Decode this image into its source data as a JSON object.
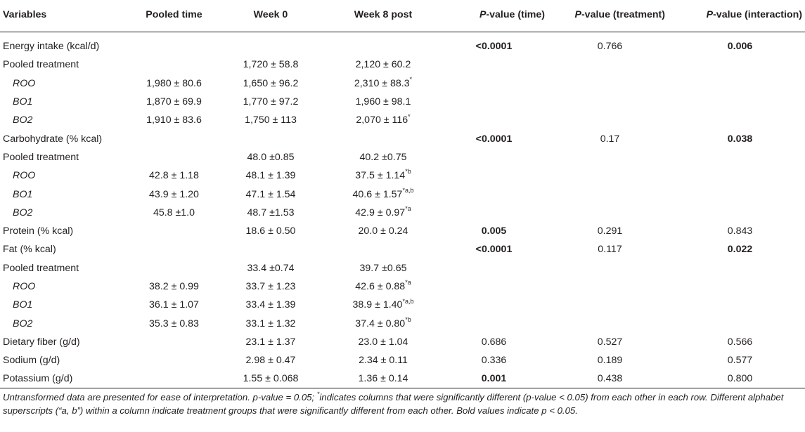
{
  "header": {
    "variables": "Variables",
    "pooled_time": "Pooled time",
    "week0": "Week 0",
    "week8": "Week 8 post",
    "p_time_prefix": "P",
    "p_time_suffix": "-value (time)",
    "p_treat_prefix": "P",
    "p_treat_suffix": "-value (treatment)",
    "p_inter_prefix": "P",
    "p_inter_suffix": "-value (interaction)"
  },
  "rows": [
    {
      "label": "Energy intake (kcal/d)",
      "sub": false,
      "pooled": "",
      "w0": "",
      "w8": "",
      "w8_sup": "",
      "pt": "<0.0001",
      "pt_bold": true,
      "ptr": "0.766",
      "ptr_bold": false,
      "pi": "0.006",
      "pi_bold": true
    },
    {
      "label": "Pooled treatment",
      "sub": false,
      "pooled": "",
      "w0": "1,720 ± 58.8",
      "w8": "2,120 ± 60.2",
      "w8_sup": "",
      "pt": "",
      "pt_bold": false,
      "ptr": "",
      "ptr_bold": false,
      "pi": "",
      "pi_bold": false
    },
    {
      "label": "ROO",
      "sub": true,
      "pooled": "1,980 ± 80.6",
      "w0": "1,650 ± 96.2",
      "w8": "2,310 ± 88.3",
      "w8_sup": "*",
      "pt": "",
      "pt_bold": false,
      "ptr": "",
      "ptr_bold": false,
      "pi": "",
      "pi_bold": false
    },
    {
      "label": "BO1",
      "sub": true,
      "pooled": "1,870 ± 69.9",
      "w0": "1,770 ± 97.2",
      "w8": "1,960 ± 98.1",
      "w8_sup": "",
      "pt": "",
      "pt_bold": false,
      "ptr": "",
      "ptr_bold": false,
      "pi": "",
      "pi_bold": false
    },
    {
      "label": "BO2",
      "sub": true,
      "pooled": "1,910 ± 83.6",
      "w0": "1,750 ± 113",
      "w8": "2,070 ± 116",
      "w8_sup": "*",
      "pt": "",
      "pt_bold": false,
      "ptr": "",
      "ptr_bold": false,
      "pi": "",
      "pi_bold": false
    },
    {
      "label": "Carbohydrate (% kcal)",
      "sub": false,
      "pooled": "",
      "w0": "",
      "w8": "",
      "w8_sup": "",
      "pt": "<0.0001",
      "pt_bold": true,
      "ptr": "0.17",
      "ptr_bold": false,
      "pi": "0.038",
      "pi_bold": true
    },
    {
      "label": "Pooled treatment",
      "sub": false,
      "pooled": "",
      "w0": "48.0 ±0.85",
      "w8": "40.2 ±0.75",
      "w8_sup": "",
      "pt": "",
      "pt_bold": false,
      "ptr": "",
      "ptr_bold": false,
      "pi": "",
      "pi_bold": false
    },
    {
      "label": "ROO",
      "sub": true,
      "pooled": "42.8 ± 1.18",
      "w0": "48.1 ± 1.39",
      "w8": "37.5 ± 1.14",
      "w8_sup": "*b",
      "pt": "",
      "pt_bold": false,
      "ptr": "",
      "ptr_bold": false,
      "pi": "",
      "pi_bold": false
    },
    {
      "label": "BO1",
      "sub": true,
      "pooled": "43.9 ± 1.20",
      "w0": "47.1 ± 1.54",
      "w8": "40.6 ± 1.57",
      "w8_sup": "*a,b",
      "pt": "",
      "pt_bold": false,
      "ptr": "",
      "ptr_bold": false,
      "pi": "",
      "pi_bold": false
    },
    {
      "label": "BO2",
      "sub": true,
      "pooled": "45.8 ±1.0",
      "w0": "48.7 ±1.53",
      "w8": "42.9 ± 0.97",
      "w8_sup": "*a",
      "pt": "",
      "pt_bold": false,
      "ptr": "",
      "ptr_bold": false,
      "pi": "",
      "pi_bold": false
    },
    {
      "label": "Protein (% kcal)",
      "sub": false,
      "pooled": "",
      "w0": "18.6 ± 0.50",
      "w8": "20.0 ± 0.24",
      "w8_sup": "",
      "pt": "0.005",
      "pt_bold": true,
      "ptr": "0.291",
      "ptr_bold": false,
      "pi": "0.843",
      "pi_bold": false
    },
    {
      "label": "Fat (% kcal)",
      "sub": false,
      "pooled": "",
      "w0": "",
      "w8": "",
      "w8_sup": "",
      "pt": "<0.0001",
      "pt_bold": true,
      "ptr": "0.117",
      "ptr_bold": false,
      "pi": "0.022",
      "pi_bold": true
    },
    {
      "label": "Pooled treatment",
      "sub": false,
      "pooled": "",
      "w0": "33.4 ±0.74",
      "w8": "39.7 ±0.65",
      "w8_sup": "",
      "pt": "",
      "pt_bold": false,
      "ptr": "",
      "ptr_bold": false,
      "pi": "",
      "pi_bold": false
    },
    {
      "label": "ROO",
      "sub": true,
      "pooled": "38.2 ± 0.99",
      "w0": "33.7 ± 1.23",
      "w8": "42.6 ± 0.88",
      "w8_sup": "*a",
      "pt": "",
      "pt_bold": false,
      "ptr": "",
      "ptr_bold": false,
      "pi": "",
      "pi_bold": false
    },
    {
      "label": "BO1",
      "sub": true,
      "pooled": "36.1 ± 1.07",
      "w0": "33.4 ± 1.39",
      "w8": "38.9 ± 1.40",
      "w8_sup": "*a,b",
      "pt": "",
      "pt_bold": false,
      "ptr": "",
      "ptr_bold": false,
      "pi": "",
      "pi_bold": false
    },
    {
      "label": "BO2",
      "sub": true,
      "pooled": "35.3 ± 0.83",
      "w0": "33.1 ± 1.32",
      "w8": "37.4 ± 0.80",
      "w8_sup": "*b",
      "pt": "",
      "pt_bold": false,
      "ptr": "",
      "ptr_bold": false,
      "pi": "",
      "pi_bold": false
    },
    {
      "label": "Dietary fiber (g/d)",
      "sub": false,
      "pooled": "",
      "w0": "23.1 ± 1.37",
      "w8": "23.0 ± 1.04",
      "w8_sup": "",
      "pt": "0.686",
      "pt_bold": false,
      "ptr": "0.527",
      "ptr_bold": false,
      "pi": "0.566",
      "pi_bold": false
    },
    {
      "label": "Sodium (g/d)",
      "sub": false,
      "pooled": "",
      "w0": "2.98 ± 0.47",
      "w8": "2.34 ± 0.11",
      "w8_sup": "",
      "pt": "0.336",
      "pt_bold": false,
      "ptr": "0.189",
      "ptr_bold": false,
      "pi": "0.577",
      "pi_bold": false
    },
    {
      "label": "Potassium (g/d)",
      "sub": false,
      "pooled": "",
      "w0": "1.55 ± 0.068",
      "w8": "1.36 ± 0.14",
      "w8_sup": "",
      "pt": "0.001",
      "pt_bold": true,
      "ptr": "0.438",
      "ptr_bold": false,
      "pi": "0.800",
      "pi_bold": false
    }
  ],
  "notes": {
    "part1": "Untransformed data are presented for ease of interpretation. p-value = 0.05; ",
    "star": "*",
    "part2": "indicates columns that were significantly different (p-value < 0.05) from each other in each row. Different alphabet superscripts (“a, b”) within a column indicate treatment groups that were significantly different from each other. Bold values indicate p < 0.05."
  }
}
